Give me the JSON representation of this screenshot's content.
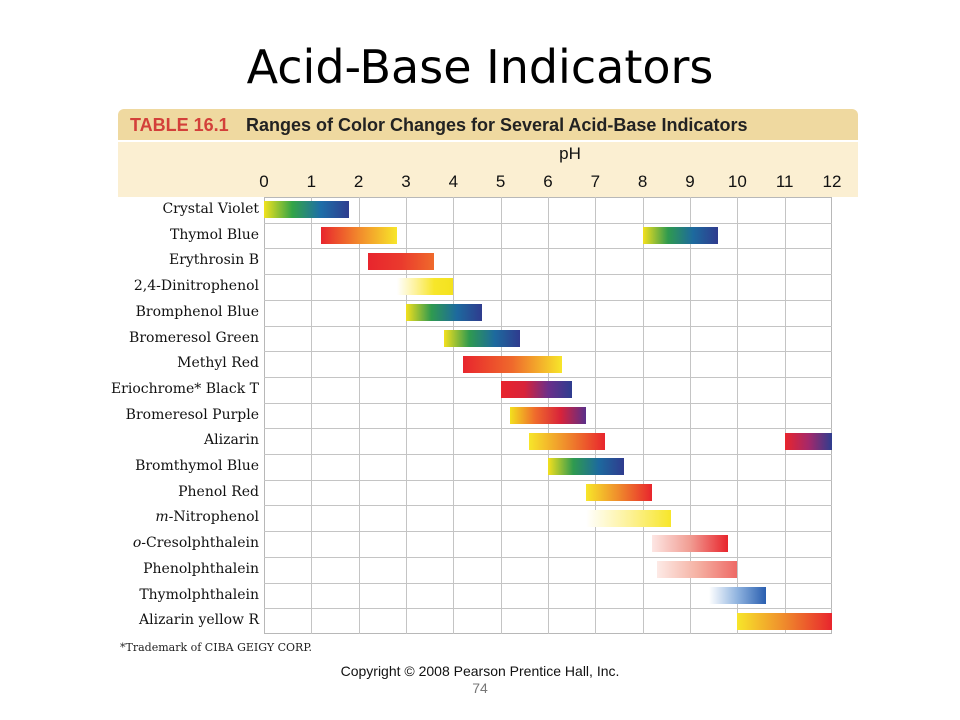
{
  "slide": {
    "title": "Acid-Base Indicators",
    "page_number": "74",
    "copyright": "Copyright © 2008 Pearson Prentice Hall, Inc."
  },
  "table": {
    "number": "TABLE 16.1",
    "caption": "Ranges of Color Changes for Several Acid-Base Indicators",
    "axis_label": "pH",
    "ticks": [
      "0",
      "1",
      "2",
      "3",
      "4",
      "5",
      "6",
      "7",
      "8",
      "9",
      "10",
      "11",
      "12"
    ],
    "footnote": "*Trademark of CIBA GEIGY CORP.",
    "rows": [
      {
        "name": "Crystal Violet",
        "ranges": [
          {
            "from": 0.0,
            "to": 1.8,
            "colors": [
              "#f1e21e",
              "#33a447",
              "#1d6ea8",
              "#2e3d8f"
            ]
          }
        ]
      },
      {
        "name": "Thymol Blue",
        "ranges": [
          {
            "from": 1.2,
            "to": 2.8,
            "colors": [
              "#e8252d",
              "#f28a2c",
              "#f7e62a"
            ]
          },
          {
            "from": 8.0,
            "to": 9.6,
            "colors": [
              "#f3e01e",
              "#2f9a4f",
              "#1d6a9e",
              "#2f3b8e"
            ]
          }
        ]
      },
      {
        "name": "Erythrosin B",
        "ranges": [
          {
            "from": 2.2,
            "to": 3.6,
            "colors": [
              "#e8252d",
              "#ea3a2d",
              "#ef6a2c"
            ]
          }
        ]
      },
      {
        "name": "2,4-Dinitrophenol",
        "ranges": [
          {
            "from": 2.8,
            "to": 4.0,
            "colors": [
              "#ffffff",
              "#fdf29a",
              "#f7e62a",
              "#f4e21e"
            ]
          }
        ]
      },
      {
        "name": "Bromphenol Blue",
        "ranges": [
          {
            "from": 3.0,
            "to": 4.6,
            "colors": [
              "#f3e01e",
              "#2f9a4f",
              "#1d6a9e",
              "#2f3b8e"
            ]
          }
        ]
      },
      {
        "name": "Bromeresol Green",
        "ranges": [
          {
            "from": 3.8,
            "to": 5.4,
            "colors": [
              "#f3e01e",
              "#2f9a4f",
              "#1d6a9e",
              "#2f3b8e"
            ]
          }
        ]
      },
      {
        "name": "Methyl Red",
        "ranges": [
          {
            "from": 4.2,
            "to": 6.3,
            "colors": [
              "#e8252d",
              "#ef6a2c",
              "#f7e62a"
            ]
          }
        ]
      },
      {
        "name": "Eriochrome* Black T",
        "ranges": [
          {
            "from": 5.0,
            "to": 6.5,
            "colors": [
              "#e8252d",
              "#d8233a",
              "#6b2f8a",
              "#2e3d8f"
            ]
          }
        ]
      },
      {
        "name": "Bromeresol Purple",
        "ranges": [
          {
            "from": 5.2,
            "to": 6.8,
            "colors": [
              "#f3e01e",
              "#ef6a2c",
              "#d8233a",
              "#5a2f8a"
            ]
          }
        ]
      },
      {
        "name": "Alizarin",
        "ranges": [
          {
            "from": 5.6,
            "to": 7.2,
            "colors": [
              "#f7e62a",
              "#ef8a2c",
              "#e8252d"
            ]
          },
          {
            "from": 11.0,
            "to": 12.0,
            "colors": [
              "#e8252d",
              "#a5286a",
              "#2e3d8f"
            ]
          }
        ]
      },
      {
        "name": "Bromthymol Blue",
        "ranges": [
          {
            "from": 6.0,
            "to": 7.6,
            "colors": [
              "#f3e01e",
              "#2f9a4f",
              "#1d6a9e",
              "#2f3b8e"
            ]
          }
        ]
      },
      {
        "name": "Phenol Red",
        "ranges": [
          {
            "from": 6.8,
            "to": 8.2,
            "colors": [
              "#f7e62a",
              "#ef8a2c",
              "#e8252d"
            ]
          }
        ]
      },
      {
        "name": "m-Nitrophenol",
        "name_prefix": "m",
        "name_rest": "-Nitrophenol",
        "ranges": [
          {
            "from": 6.8,
            "to": 8.6,
            "colors": [
              "#ffffff",
              "#fdf29a",
              "#f7e62a"
            ]
          }
        ]
      },
      {
        "name": "o-Cresolphthalein",
        "name_prefix": "o",
        "name_rest": "-Cresolphthalein",
        "ranges": [
          {
            "from": 8.2,
            "to": 9.8,
            "colors": [
              "#fde6e3",
              "#f19d93",
              "#e8252d"
            ]
          }
        ]
      },
      {
        "name": "Phenolphthalein",
        "ranges": [
          {
            "from": 8.3,
            "to": 10.0,
            "colors": [
              "#fdeae6",
              "#f5b2a4",
              "#ee6a66"
            ]
          }
        ]
      },
      {
        "name": "Thymolphthalein",
        "ranges": [
          {
            "from": 9.4,
            "to": 10.6,
            "colors": [
              "#ffffff",
              "#8fb3df",
              "#2a5fb0"
            ]
          }
        ]
      },
      {
        "name": "Alizarin yellow R",
        "ranges": [
          {
            "from": 10.0,
            "to": 12.0,
            "colors": [
              "#f7e62a",
              "#ef8a2c",
              "#e8252d"
            ]
          }
        ]
      }
    ]
  }
}
